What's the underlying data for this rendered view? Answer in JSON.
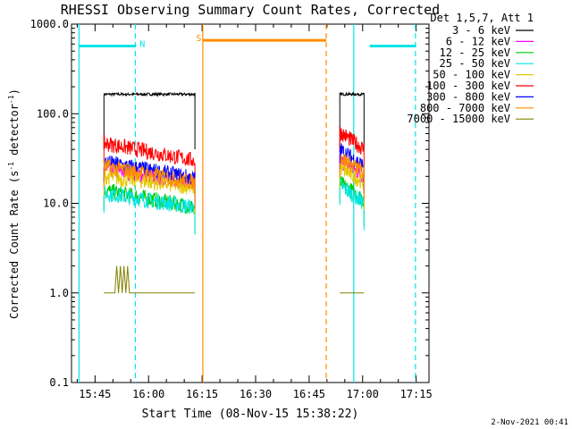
{
  "chart_data": {
    "type": "line",
    "title": "RHESSI Observing Summary Count Rates, Corrected",
    "xlabel": "Start Time (08-Nov-15 15:38:22)",
    "ylabel_main": "Corrected Count Rate (s",
    "ylabel_sup1": "-1",
    "ylabel_mid": " detector",
    "ylabel_sup2": "-1",
    "ylabel_end": ")",
    "x_range_min": [
      15.633,
      17.3
    ],
    "y_range": [
      0.1,
      1000
    ],
    "y_scale": "log",
    "x_ticks": [
      {
        "label": "15:45",
        "min": 945
      },
      {
        "label": "16:00",
        "min": 960
      },
      {
        "label": "16:15",
        "min": 975
      },
      {
        "label": "16:30",
        "min": 990
      },
      {
        "label": "16:45",
        "min": 1005
      },
      {
        "label": "17:00",
        "min": 1020
      },
      {
        "label": "17:15",
        "min": 1035
      }
    ],
    "y_ticks": [
      {
        "label": "0.1",
        "v": 0.1
      },
      {
        "label": "1.0",
        "v": 1
      },
      {
        "label": "10.0",
        "v": 10
      },
      {
        "label": "100.0",
        "v": 100
      },
      {
        "label": "1000.0",
        "v": 1000
      }
    ],
    "legend_header": "Det 1,5,7, Att 1",
    "series": [
      {
        "name": "3 - 6 keV",
        "color": "#000000",
        "seg1": [
          165,
          165
        ],
        "seg2": [
          165,
          165
        ]
      },
      {
        "name": "6 - 12 keV",
        "color": "#ff00ff",
        "seg1": [
          24,
          17
        ],
        "seg2": [
          30,
          20
        ]
      },
      {
        "name": "12 - 25 keV",
        "color": "#00cc00",
        "seg1": [
          14,
          9
        ],
        "seg2": [
          17,
          11
        ]
      },
      {
        "name": "25 - 50 keV",
        "color": "#00e5e5",
        "seg1": [
          13,
          9
        ],
        "seg2": [
          16,
          10
        ]
      },
      {
        "name": "50 - 100 keV",
        "color": "#e5c800",
        "seg1": [
          20,
          15
        ],
        "seg2": [
          25,
          17
        ]
      },
      {
        "name": "100 - 300 keV",
        "color": "#ff0000",
        "seg1": [
          47,
          30
        ],
        "seg2": [
          63,
          40
        ]
      },
      {
        "name": "300 - 800 keV",
        "color": "#0000ff",
        "seg1": [
          29,
          19
        ],
        "seg2": [
          40,
          26
        ]
      },
      {
        "name": "800 - 7000 keV",
        "color": "#ff8c00",
        "seg1": [
          26,
          17
        ],
        "seg2": [
          33,
          22
        ]
      },
      {
        "name": "7000 - 15000 keV",
        "color": "#808000",
        "seg1": [
          1,
          1
        ],
        "seg2": [
          1,
          1
        ]
      }
    ],
    "segments_min": [
      [
        947.5,
        973.0
      ],
      [
        1013.6,
        1020.4
      ]
    ],
    "flag_lines": [
      {
        "label": "N",
        "color": "#00e5e5",
        "ranges_min": [
          [
            940.5,
            956.5
          ],
          [
            1022,
            1035
          ]
        ],
        "level": 570
      },
      {
        "label": "S",
        "color": "#ff8c00",
        "ranges_min": [
          [
            975.2,
            1009.8
          ]
        ],
        "level": 660
      }
    ],
    "vlines": [
      {
        "min": 940.5,
        "color": "#00e5e5",
        "style": "solid"
      },
      {
        "min": 956.3,
        "color": "#00e5e5",
        "style": "dashed"
      },
      {
        "min": 975.2,
        "color": "#ff8c00",
        "style": "solid"
      },
      {
        "min": 1009.8,
        "color": "#ff8c00",
        "style": "dashed"
      },
      {
        "min": 1017.5,
        "color": "#00e5e5",
        "style": "solid"
      },
      {
        "min": 1034.8,
        "color": "#00e5e5",
        "style": "dashed"
      }
    ],
    "footer_date": "2-Nov-2021 00:41"
  }
}
